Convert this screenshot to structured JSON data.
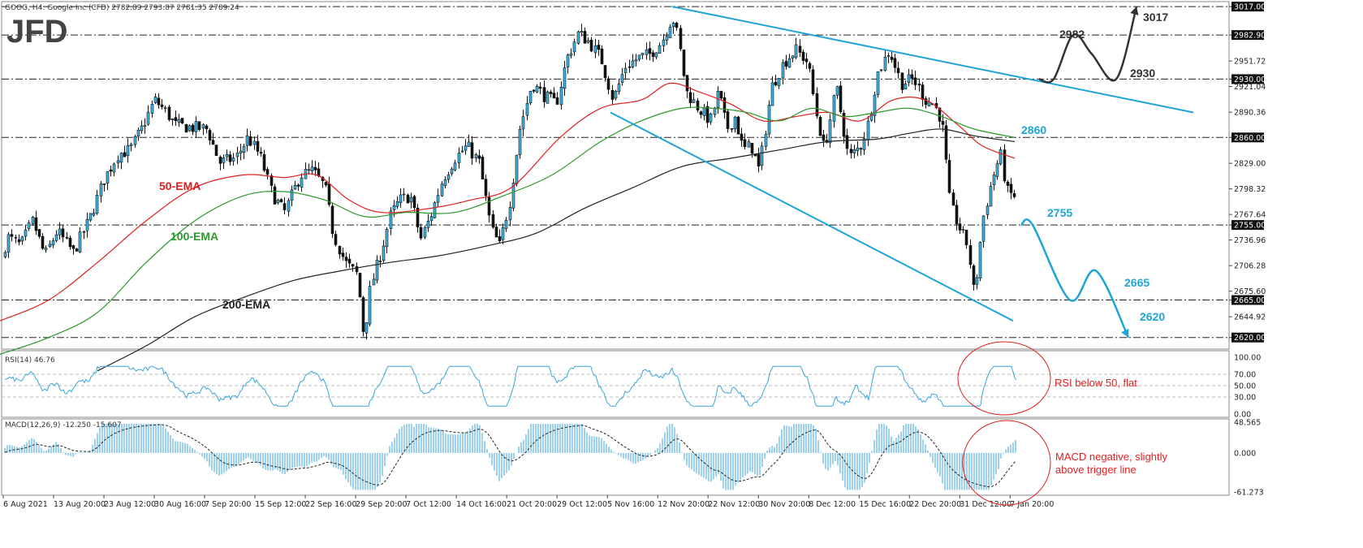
{
  "chart_data": {
    "type": "candlestick",
    "symbol_header": "GOOG, H4:  Google Inc (CFD)  2782.89 2793.87 2781.35 2789.24",
    "logo": "JFD",
    "price_axis": {
      "range": [
        2610,
        3021
      ],
      "ticks": [
        "3017.00",
        "2982.90",
        "2951.72",
        "2930.00",
        "2921.04",
        "2890.36",
        "2860.00",
        "2829.00",
        "2798.32",
        "2767.64",
        "2755.00",
        "2736.96",
        "2706.28",
        "2675.60",
        "2665.00",
        "2644.92",
        "2620.00"
      ],
      "highlighted": [
        "3017.00",
        "2982.90",
        "2930.00",
        "2860.00",
        "2755.00",
        "2665.00",
        "2620.00"
      ]
    },
    "x_labels": [
      "6 Aug 2021",
      "13 Aug 20:00",
      "23 Aug 12:00",
      "30 Aug 16:00",
      "7 Sep 20:00",
      "15 Sep 12:00",
      "22 Sep 16:00",
      "29 Sep 20:00",
      "7 Oct 12:00",
      "14 Oct 16:00",
      "21 Oct 20:00",
      "29 Oct 12:00",
      "5 Nov 16:00",
      "12 Nov 20:00",
      "22 Nov 12:00",
      "30 Nov 20:00",
      "8 Dec 12:00",
      "15 Dec 16:00",
      "22 Dec 20:00",
      "31 Dec 12:00",
      "7 Jan 20:00"
    ],
    "price_anchors": [
      [
        0,
        2715
      ],
      [
        10,
        2740
      ],
      [
        25,
        2730
      ],
      [
        40,
        2760
      ],
      [
        55,
        2718
      ],
      [
        70,
        2748
      ],
      [
        90,
        2722
      ],
      [
        110,
        2762
      ],
      [
        128,
        2810
      ],
      [
        145,
        2840
      ],
      [
        160,
        2845
      ],
      [
        175,
        2872
      ],
      [
        190,
        2905
      ],
      [
        205,
        2890
      ],
      [
        215,
        2875
      ],
      [
        235,
        2872
      ],
      [
        255,
        2870
      ],
      [
        270,
        2830
      ],
      [
        290,
        2835
      ],
      [
        305,
        2860
      ],
      [
        320,
        2838
      ],
      [
        335,
        2792
      ],
      [
        350,
        2770
      ],
      [
        370,
        2815
      ],
      [
        385,
        2820
      ],
      [
        400,
        2800
      ],
      [
        410,
        2745
      ],
      [
        425,
        2710
      ],
      [
        440,
        2695
      ],
      [
        448,
        2620
      ],
      [
        456,
        2680
      ],
      [
        470,
        2725
      ],
      [
        480,
        2765
      ],
      [
        492,
        2785
      ],
      [
        505,
        2790
      ],
      [
        518,
        2738
      ],
      [
        530,
        2765
      ],
      [
        545,
        2810
      ],
      [
        560,
        2835
      ],
      [
        575,
        2850
      ],
      [
        590,
        2830
      ],
      [
        605,
        2750
      ],
      [
        615,
        2730
      ],
      [
        628,
        2785
      ],
      [
        640,
        2870
      ],
      [
        655,
        2925
      ],
      [
        670,
        2910
      ],
      [
        685,
        2900
      ],
      [
        698,
        2955
      ],
      [
        712,
        2985
      ],
      [
        725,
        2975
      ],
      [
        740,
        2955
      ],
      [
        755,
        2905
      ],
      [
        770,
        2945
      ],
      [
        785,
        2955
      ],
      [
        800,
        2960
      ],
      [
        815,
        2975
      ],
      [
        828,
        3005
      ],
      [
        835,
        2980
      ],
      [
        845,
        2915
      ],
      [
        860,
        2895
      ],
      [
        875,
        2880
      ],
      [
        885,
        2915
      ],
      [
        895,
        2870
      ],
      [
        905,
        2885
      ],
      [
        915,
        2845
      ],
      [
        925,
        2850
      ],
      [
        935,
        2820
      ],
      [
        950,
        2920
      ],
      [
        965,
        2950
      ],
      [
        980,
        2965
      ],
      [
        995,
        2950
      ],
      [
        1005,
        2890
      ],
      [
        1015,
        2845
      ],
      [
        1030,
        2920
      ],
      [
        1045,
        2835
      ],
      [
        1060,
        2850
      ],
      [
        1070,
        2880
      ],
      [
        1080,
        2935
      ],
      [
        1095,
        2965
      ],
      [
        1110,
        2925
      ],
      [
        1125,
        2930
      ],
      [
        1140,
        2905
      ],
      [
        1150,
        2900
      ],
      [
        1160,
        2880
      ],
      [
        1170,
        2780
      ],
      [
        1180,
        2755
      ],
      [
        1192,
        2730
      ],
      [
        1200,
        2668
      ],
      [
        1210,
        2760
      ],
      [
        1222,
        2810
      ],
      [
        1232,
        2840
      ],
      [
        1240,
        2795
      ],
      [
        1248,
        2790
      ]
    ],
    "series": [
      {
        "name": "50-EMA",
        "color": "#e02020",
        "anchors": [
          [
            0,
            2640
          ],
          [
            60,
            2665
          ],
          [
            120,
            2710
          ],
          [
            180,
            2760
          ],
          [
            240,
            2800
          ],
          [
            300,
            2815
          ],
          [
            350,
            2812
          ],
          [
            390,
            2815
          ],
          [
            430,
            2785
          ],
          [
            470,
            2770
          ],
          [
            530,
            2775
          ],
          [
            580,
            2785
          ],
          [
            630,
            2800
          ],
          [
            690,
            2860
          ],
          [
            740,
            2895
          ],
          [
            790,
            2905
          ],
          [
            825,
            2925
          ],
          [
            860,
            2915
          ],
          [
            900,
            2900
          ],
          [
            940,
            2880
          ],
          [
            980,
            2885
          ],
          [
            1020,
            2890
          ],
          [
            1060,
            2880
          ],
          [
            1100,
            2905
          ],
          [
            1140,
            2905
          ],
          [
            1180,
            2875
          ],
          [
            1210,
            2850
          ],
          [
            1250,
            2835
          ]
        ]
      },
      {
        "name": "100-EMA",
        "color": "#2a9a2a",
        "anchors": [
          [
            0,
            2600
          ],
          [
            60,
            2620
          ],
          [
            120,
            2650
          ],
          [
            180,
            2710
          ],
          [
            240,
            2760
          ],
          [
            300,
            2790
          ],
          [
            350,
            2795
          ],
          [
            400,
            2785
          ],
          [
            450,
            2765
          ],
          [
            500,
            2770
          ],
          [
            560,
            2770
          ],
          [
            620,
            2790
          ],
          [
            680,
            2815
          ],
          [
            740,
            2855
          ],
          [
            790,
            2880
          ],
          [
            840,
            2895
          ],
          [
            880,
            2895
          ],
          [
            920,
            2890
          ],
          [
            960,
            2880
          ],
          [
            1000,
            2895
          ],
          [
            1040,
            2885
          ],
          [
            1080,
            2890
          ],
          [
            1120,
            2895
          ],
          [
            1160,
            2885
          ],
          [
            1200,
            2870
          ],
          [
            1250,
            2860
          ]
        ]
      },
      {
        "name": "200-EMA",
        "color": "#222222",
        "anchors": [
          [
            120,
            2580
          ],
          [
            180,
            2610
          ],
          [
            240,
            2645
          ],
          [
            300,
            2668
          ],
          [
            360,
            2688
          ],
          [
            420,
            2700
          ],
          [
            480,
            2710
          ],
          [
            540,
            2718
          ],
          [
            600,
            2730
          ],
          [
            660,
            2745
          ],
          [
            720,
            2775
          ],
          [
            780,
            2800
          ],
          [
            840,
            2825
          ],
          [
            900,
            2835
          ],
          [
            960,
            2845
          ],
          [
            1020,
            2855
          ],
          [
            1080,
            2858
          ],
          [
            1120,
            2865
          ],
          [
            1160,
            2870
          ],
          [
            1200,
            2862
          ],
          [
            1250,
            2855
          ]
        ]
      }
    ],
    "labels": [
      {
        "text": "50-EMA",
        "color": "#e02020"
      },
      {
        "text": "100-EMA",
        "color": "#2a9a2a"
      },
      {
        "text": "200-EMA",
        "color": "#222222"
      }
    ],
    "channel": {
      "color": "#1fa4d8",
      "upper": [
        [
          828,
          3017
        ],
        [
          1470,
          2890
        ]
      ],
      "lower": [
        [
          752,
          2890
        ],
        [
          1248,
          2640
        ]
      ]
    },
    "levels": {
      "resistance_1": "2860",
      "resistance_2": "2930",
      "resistance_3": "2982",
      "resistance_4": "3017",
      "support_1": "2755",
      "support_2": "2665",
      "support_3": "2620"
    },
    "bull_path": {
      "color": "#333333",
      "anchors": [
        [
          1280,
          2930
        ],
        [
          1298,
          2930
        ],
        [
          1322,
          2983
        ],
        [
          1345,
          2960
        ],
        [
          1375,
          2930
        ],
        [
          1400,
          3017
        ]
      ]
    },
    "bear_path": {
      "color": "#1fa4d8",
      "anchors": [
        [
          1258,
          2755
        ],
        [
          1272,
          2755
        ],
        [
          1318,
          2665
        ],
        [
          1350,
          2700
        ],
        [
          1390,
          2620
        ]
      ]
    },
    "rsi": {
      "header": "RSI(14) 46.76",
      "ticks": [
        "100.00",
        "70.00",
        "50.00",
        "30.00",
        "0.00"
      ],
      "note": "RSI below 50, flat"
    },
    "macd": {
      "header": "MACD(12,26,9) -12.250 -15.607",
      "ticks": [
        "48.565",
        "0.000",
        "-61.273"
      ],
      "note": "MACD negative, slightly above trigger line"
    }
  }
}
